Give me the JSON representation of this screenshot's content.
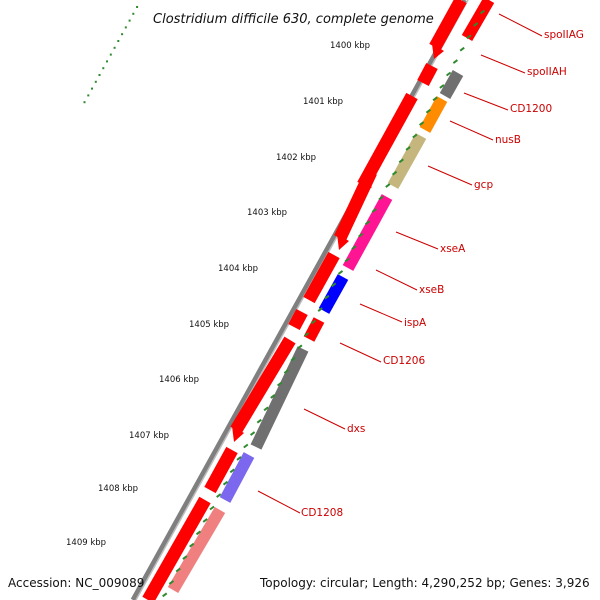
{
  "title": "Clostridium difficile 630, complete genome",
  "accession": "Accession: NC_009089",
  "topology": "Topology: circular; Length: 4,290,252 bp; Genes: 3,926",
  "colors": {
    "backbone": "#7f7f7f",
    "cds": "#ff0000",
    "tick": "#2d8a2d",
    "label": "#cc0000"
  },
  "positions": [
    {
      "label": "1400 kbp"
    },
    {
      "label": "1401 kbp"
    },
    {
      "label": "1402 kbp"
    },
    {
      "label": "1403 kbp"
    },
    {
      "label": "1404 kbp"
    },
    {
      "label": "1405 kbp"
    },
    {
      "label": "1406 kbp"
    },
    {
      "label": "1407 kbp"
    },
    {
      "label": "1408 kbp"
    },
    {
      "label": "1409 kbp"
    }
  ],
  "genes": [
    {
      "name": "spoIIAG",
      "color": "#ff0000"
    },
    {
      "name": "spoIIAH",
      "color": "#ff0000"
    },
    {
      "name": "CD1200",
      "color": "#707070"
    },
    {
      "name": "nusB",
      "color": "#ff8c00"
    },
    {
      "name": "gcp",
      "color": "#c4b67c"
    },
    {
      "name": "xseA",
      "color": "#ff1493"
    },
    {
      "name": "xseB",
      "color": "#0000ff"
    },
    {
      "name": "ispA",
      "color": "#ff0000"
    },
    {
      "name": "CD1206",
      "color": "#707070"
    },
    {
      "name": "dxs",
      "color": "#7b68ee"
    },
    {
      "name": "CD1208",
      "color": "#f08080"
    }
  ]
}
